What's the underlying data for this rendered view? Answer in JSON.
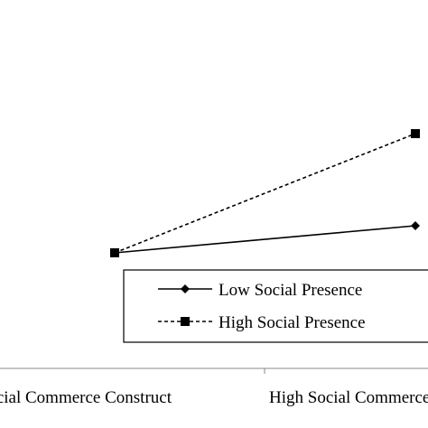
{
  "chart_data": {
    "type": "line",
    "categories": [
      "Low Social Commerce Construct",
      "High Social Commerce Construct"
    ],
    "series": [
      {
        "name": "Low Social Presence",
        "values": [
          3.0,
          3.25
        ],
        "style": "solid",
        "marker": "diamond",
        "color": "#000000"
      },
      {
        "name": "High Social Presence",
        "values": [
          3.0,
          4.1
        ],
        "style": "dashed",
        "marker": "square",
        "color": "#000000"
      }
    ],
    "xlabel": "",
    "ylabel": "",
    "grid": false,
    "legend_position": "bottom-right"
  }
}
